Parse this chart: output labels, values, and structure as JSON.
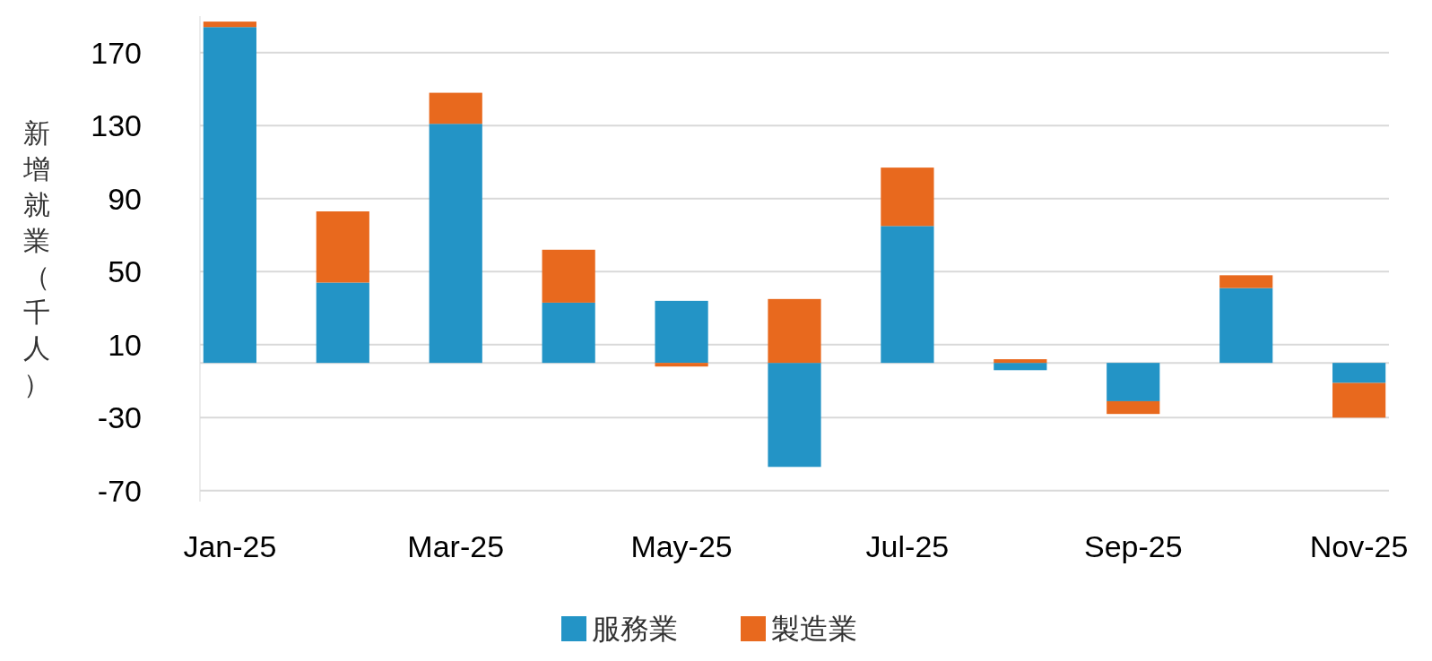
{
  "chart_data": {
    "type": "bar",
    "stacked": true,
    "ylabel": "新增就業（千人）",
    "categories": [
      "Jan-25",
      null,
      "Mar-25",
      null,
      "May-25",
      null,
      "Jul-25",
      null,
      "Sep-25",
      null,
      "Nov-25"
    ],
    "series": [
      {
        "name": "服務業",
        "color": "#2394c6",
        "values": [
          184,
          44,
          131,
          33,
          34,
          -57,
          75,
          -4,
          -21,
          41,
          -11
        ]
      },
      {
        "name": "製造業",
        "color": "#e8691e",
        "values": [
          3,
          39,
          17,
          29,
          -2,
          35,
          32,
          2,
          -7,
          7,
          -19
        ]
      }
    ],
    "ylim": [
      -76,
      190
    ],
    "yticks": [
      -70,
      -30,
      10,
      50,
      90,
      130,
      170
    ],
    "grid": "y",
    "legend": "bottom"
  }
}
